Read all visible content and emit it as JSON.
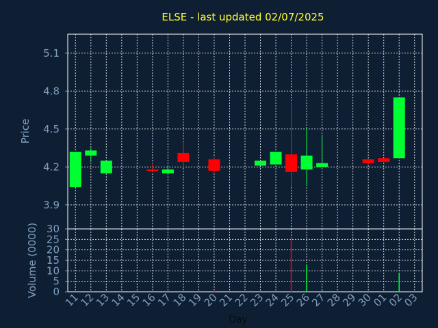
{
  "chart_data": {
    "type": "candlestick",
    "title": "ELSE - last updated 02/07/2025",
    "xlabel": "Day",
    "price_panel": {
      "ylabel": "Price",
      "ylim": [
        3.71,
        5.25
      ],
      "yticks": [
        "3.9",
        "4.2",
        "4.5",
        "4.8",
        "5.1"
      ]
    },
    "volume_panel": {
      "ylabel": "Volume (0000)",
      "ylim": [
        0,
        30
      ],
      "yticks": [
        "0",
        "5",
        "10",
        "15",
        "20",
        "25",
        "30"
      ]
    },
    "x_tick_labels": [
      "11",
      "12",
      "13",
      "14",
      "15",
      "16",
      "17",
      "18",
      "19",
      "20",
      "21",
      "22",
      "23",
      "24",
      "25",
      "26",
      "27",
      "28",
      "29",
      "30",
      "01",
      "02",
      "03"
    ],
    "colors": {
      "up": "#00ff33",
      "down": "#ff0000",
      "grid": "#ffffff",
      "background": "#0f1f33",
      "title": "#ffff33",
      "axis": "#7f9fbf"
    },
    "candles": [
      {
        "day": "11",
        "open": 4.04,
        "high": 4.32,
        "low": 4.04,
        "close": 4.32,
        "volume": 0
      },
      {
        "day": "12",
        "open": 4.29,
        "high": 4.35,
        "low": 4.24,
        "close": 4.33,
        "volume": 0
      },
      {
        "day": "13",
        "open": 4.15,
        "high": 4.25,
        "low": 4.15,
        "close": 4.25,
        "volume": 0
      },
      {
        "day": "16",
        "open": 4.18,
        "high": 4.23,
        "low": 4.16,
        "close": 4.17,
        "volume": 0
      },
      {
        "day": "17",
        "open": 4.15,
        "high": 4.21,
        "low": 4.15,
        "close": 4.18,
        "volume": 0
      },
      {
        "day": "18",
        "open": 4.31,
        "high": 4.4,
        "low": 4.2,
        "close": 4.24,
        "volume": 0
      },
      {
        "day": "20",
        "open": 4.26,
        "high": 4.28,
        "low": 4.15,
        "close": 4.17,
        "volume": 0.6
      },
      {
        "day": "23",
        "open": 4.21,
        "high": 4.25,
        "low": 4.21,
        "close": 4.25,
        "volume": 0
      },
      {
        "day": "24",
        "open": 4.22,
        "high": 4.32,
        "low": 4.22,
        "close": 4.32,
        "volume": 0
      },
      {
        "day": "25",
        "open": 4.3,
        "high": 4.71,
        "low": 4.04,
        "close": 4.16,
        "volume": 26
      },
      {
        "day": "26",
        "open": 4.18,
        "high": 4.51,
        "low": 4.05,
        "close": 4.29,
        "volume": 13
      },
      {
        "day": "27",
        "open": 4.2,
        "high": 4.44,
        "low": 4.2,
        "close": 4.23,
        "volume": 0.5
      },
      {
        "day": "30",
        "open": 4.26,
        "high": 4.26,
        "low": 4.22,
        "close": 4.23,
        "volume": 0
      },
      {
        "day": "01",
        "open": 4.27,
        "high": 4.27,
        "low": 4.23,
        "close": 4.24,
        "volume": 0
      },
      {
        "day": "02",
        "open": 4.27,
        "high": 4.75,
        "low": 4.27,
        "close": 4.75,
        "volume": 9
      }
    ]
  }
}
